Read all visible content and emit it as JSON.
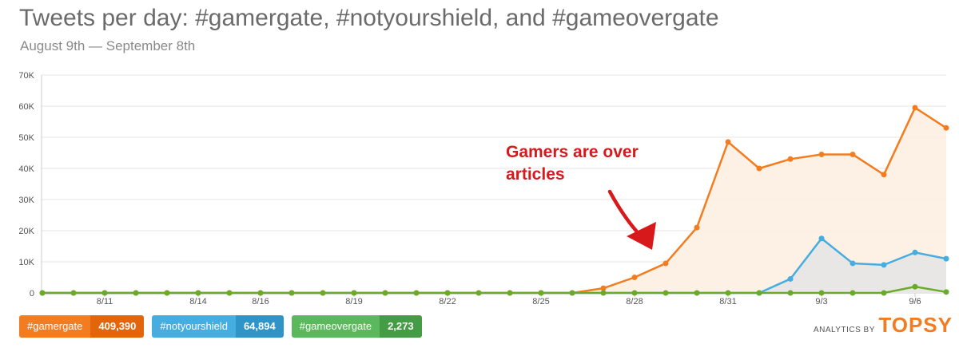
{
  "header": {
    "title": "Tweets per day: #gamergate, #notyourshield, and #gameovergate",
    "subtitle": "August 9th — September 8th"
  },
  "annotation": {
    "line1": "Gamers are over",
    "line2": "articles",
    "color": "#d7191c"
  },
  "legend": [
    {
      "label": "#gamergate",
      "count": "409,390",
      "color": "#f47c20",
      "dark": "#e2640b"
    },
    {
      "label": "#notyourshield",
      "count": "64,894",
      "color": "#45ade0",
      "dark": "#2f95c8"
    },
    {
      "label": "#gameovergate",
      "count": "2,273",
      "color": "#5cb85c",
      "dark": "#449d44"
    }
  ],
  "brand": {
    "prefix": "ANALYTICS BY",
    "name": "TOPSY"
  },
  "chart_data": {
    "type": "area",
    "x": [
      "8/9",
      "8/10",
      "8/11",
      "8/12",
      "8/13",
      "8/14",
      "8/15",
      "8/16",
      "8/17",
      "8/18",
      "8/19",
      "8/20",
      "8/21",
      "8/22",
      "8/23",
      "8/24",
      "8/25",
      "8/26",
      "8/27",
      "8/28",
      "8/29",
      "8/30",
      "8/31",
      "9/1",
      "9/2",
      "9/3",
      "9/4",
      "9/5",
      "9/6",
      "9/7"
    ],
    "x_tick_labels": [
      "8/11",
      "8/14",
      "8/16",
      "8/19",
      "8/22",
      "8/25",
      "8/28",
      "8/31",
      "9/3",
      "9/6"
    ],
    "ylim": [
      0,
      70000
    ],
    "y_ticks": [
      0,
      10000,
      20000,
      30000,
      40000,
      50000,
      60000,
      70000
    ],
    "y_tick_labels": [
      "0",
      "10K",
      "20K",
      "30K",
      "40K",
      "50K",
      "60K",
      "70K"
    ],
    "grid": true,
    "series": [
      {
        "name": "#gamergate",
        "color": "#f47c20",
        "fill": "#fdeee2",
        "values": [
          0,
          0,
          0,
          0,
          0,
          0,
          0,
          0,
          0,
          0,
          0,
          0,
          0,
          0,
          0,
          0,
          0,
          0,
          1500,
          5000,
          9500,
          21000,
          48500,
          40000,
          43000,
          44500,
          44500,
          38000,
          59500,
          53000
        ]
      },
      {
        "name": "#notyourshield",
        "color": "#45ade0",
        "fill": "#e6e6e6",
        "values": [
          0,
          0,
          0,
          0,
          0,
          0,
          0,
          0,
          0,
          0,
          0,
          0,
          0,
          0,
          0,
          0,
          0,
          0,
          0,
          0,
          0,
          0,
          0,
          0,
          4500,
          17500,
          9500,
          9000,
          13000,
          11000
        ]
      },
      {
        "name": "#gameovergate",
        "color": "#6aaa2a",
        "fill": "none",
        "values": [
          0,
          0,
          0,
          0,
          0,
          0,
          0,
          0,
          0,
          0,
          0,
          0,
          0,
          0,
          0,
          0,
          0,
          0,
          0,
          0,
          0,
          0,
          0,
          0,
          0,
          0,
          0,
          0,
          2000,
          300
        ]
      }
    ]
  }
}
